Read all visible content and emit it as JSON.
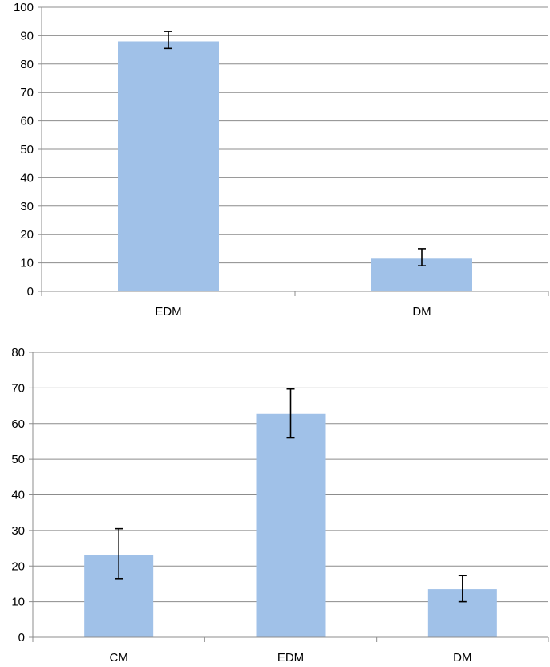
{
  "chart_data": [
    {
      "type": "bar",
      "title": "",
      "xlabel": "",
      "ylabel": "",
      "categories": [
        "EDM",
        "DM"
      ],
      "series": [
        {
          "values": [
            88,
            11.5
          ],
          "error_low": [
            85.5,
            9
          ],
          "error_high": [
            91.5,
            15
          ]
        }
      ],
      "ylim": [
        0,
        100
      ],
      "yticks": [
        "0",
        "10",
        "20",
        "30",
        "40",
        "50",
        "60",
        "70",
        "80",
        "90",
        "100"
      ],
      "grid": true,
      "legend": "none",
      "bar_color": "#A0C1E8"
    },
    {
      "type": "bar",
      "title": "",
      "xlabel": "",
      "ylabel": "",
      "categories": [
        "CM",
        "EDM",
        "DM"
      ],
      "series": [
        {
          "values": [
            23,
            62.7,
            13.5
          ],
          "error_low": [
            16.5,
            56,
            10
          ],
          "error_high": [
            30.5,
            69.7,
            17.3
          ]
        }
      ],
      "ylim": [
        0,
        80
      ],
      "yticks": [
        "0",
        "10",
        "20",
        "30",
        "40",
        "50",
        "60",
        "70",
        "80"
      ],
      "grid": true,
      "legend": "none",
      "bar_color": "#A0C1E8"
    }
  ]
}
